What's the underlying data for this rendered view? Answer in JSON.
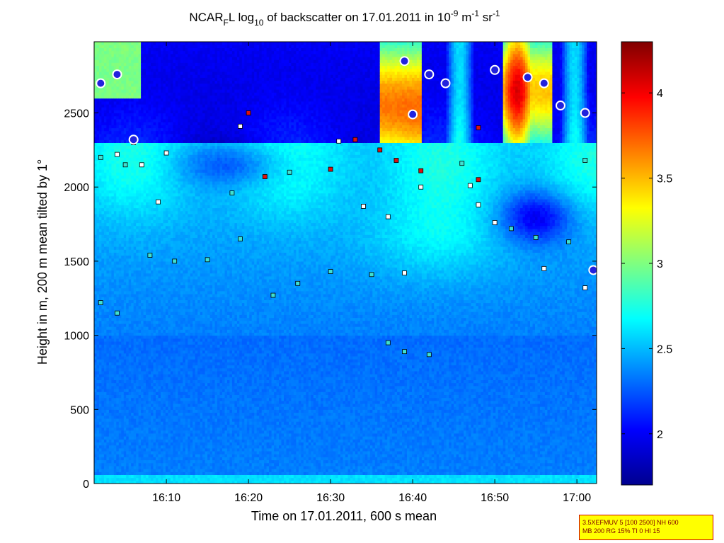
{
  "chart_data": {
    "type": "heatmap",
    "title_parts": {
      "prefix": "NCAR",
      "sub1": "F",
      "mid1": "L log",
      "sub2": "10",
      "mid2": " of backscatter on 17.01.2011 in 10",
      "sup1": "-9",
      "mid3": " m",
      "sup2": "-1",
      "mid4": " sr",
      "sup3": "-1"
    },
    "xlabel": "Time on 17.01.2011, 600 s mean",
    "ylabel": "Height in m, 200 m mean tilted by 1°",
    "x_range_minutes": [
      961.2,
      1022.4
    ],
    "y_range": [
      0,
      2980
    ],
    "x_ticks": [
      {
        "label": "16:10",
        "value": 970
      },
      {
        "label": "16:20",
        "value": 980
      },
      {
        "label": "16:30",
        "value": 990
      },
      {
        "label": "16:40",
        "value": 1000
      },
      {
        "label": "16:50",
        "value": 1010
      },
      {
        "label": "17:00",
        "value": 1020
      }
    ],
    "y_ticks": [
      0,
      500,
      1000,
      1500,
      2000,
      2500
    ],
    "colorbar": {
      "range": [
        1.7,
        4.3
      ],
      "ticks": [
        "2",
        "2.5",
        "3",
        "3.5",
        "4"
      ],
      "tick_values": [
        2,
        2.5,
        3,
        3.5,
        4
      ],
      "colormap": "jet"
    },
    "marker_layers": [
      {
        "marker": "red-square",
        "color": "#dd1111",
        "points": [
          [
            966,
            2300
          ],
          [
            980,
            2500
          ],
          [
            982,
            2070
          ],
          [
            990,
            2120
          ],
          [
            993,
            2320
          ],
          [
            996,
            2250
          ],
          [
            998,
            2180
          ],
          [
            1001,
            2110
          ],
          [
            1008,
            2050
          ],
          [
            1008,
            2400
          ]
        ]
      },
      {
        "marker": "white-square",
        "color": "#ffffff",
        "points": [
          [
            964,
            2220
          ],
          [
            967,
            2150
          ],
          [
            969,
            1900
          ],
          [
            970,
            2230
          ],
          [
            979,
            2410
          ],
          [
            991,
            2310
          ],
          [
            994,
            1870
          ],
          [
            997,
            1800
          ],
          [
            999,
            1420
          ],
          [
            1001,
            2000
          ],
          [
            1007,
            2010
          ],
          [
            1008,
            1880
          ],
          [
            1010,
            1760
          ],
          [
            1016,
            1450
          ],
          [
            1021,
            1320
          ]
        ]
      },
      {
        "marker": "cyan-square",
        "color": "#40e0d0",
        "points": [
          [
            962,
            1220
          ],
          [
            964,
            1150
          ],
          [
            968,
            1540
          ],
          [
            971,
            1500
          ],
          [
            975,
            1510
          ],
          [
            979,
            1650
          ],
          [
            983,
            1270
          ],
          [
            986,
            1350
          ],
          [
            990,
            1430
          ],
          [
            995,
            1410
          ],
          [
            997,
            950
          ],
          [
            999,
            890
          ],
          [
            1002,
            870
          ],
          [
            1006,
            2160
          ],
          [
            1012,
            1720
          ],
          [
            1015,
            1660
          ],
          [
            1019,
            1630
          ],
          [
            1021,
            2180
          ],
          [
            962,
            2200
          ],
          [
            965,
            2150
          ],
          [
            978,
            1960
          ],
          [
            985,
            2100
          ]
        ]
      },
      {
        "marker": "cloud-base-circle",
        "color": "#2222dd",
        "points": [
          [
            962,
            2700
          ],
          [
            964,
            2760
          ],
          [
            966,
            2320
          ],
          [
            999,
            2850
          ],
          [
            1000,
            2490
          ],
          [
            1002,
            2760
          ],
          [
            1004,
            2700
          ],
          [
            1010,
            2790
          ],
          [
            1014,
            2740
          ],
          [
            1016,
            2700
          ],
          [
            1018,
            2550
          ],
          [
            1021,
            2500
          ],
          [
            1022,
            1440
          ]
        ]
      }
    ]
  },
  "info_box": {
    "line1": "3.5XEFMUV 5 [100 2500] NH 600",
    "line2": "MB 200 RG 15% TI 0 HI 15"
  }
}
